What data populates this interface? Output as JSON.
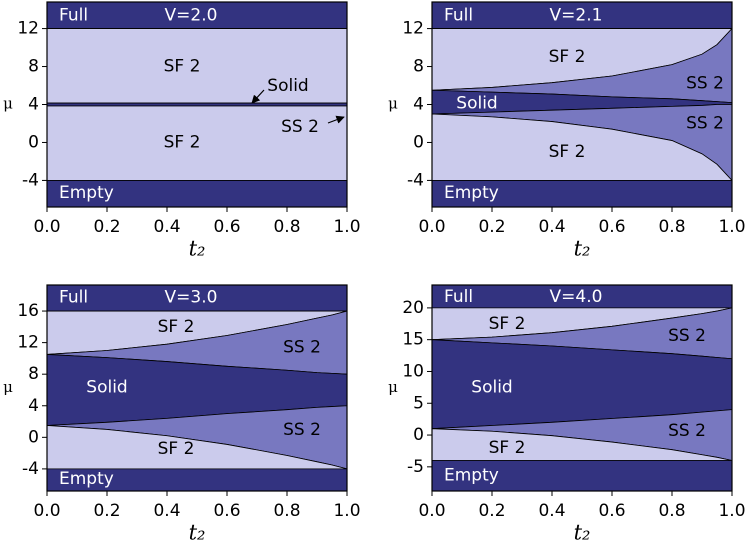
{
  "chart_data": [
    {
      "type": "area",
      "title": "V=2.0",
      "xlabel": "t₂",
      "ylabel": "μ",
      "xlim": [
        0,
        1
      ],
      "ylim": [
        -6.8,
        14.8
      ],
      "xticks": [
        {
          "value": 0,
          "label": "0.0"
        },
        {
          "value": 0.2,
          "label": "0.2"
        },
        {
          "value": 0.4,
          "label": "0.4"
        },
        {
          "value": 0.6,
          "label": "0.6"
        },
        {
          "value": 0.8,
          "label": "0.8"
        },
        {
          "value": 1,
          "label": "1.0"
        }
      ],
      "yticks": [
        -4,
        0,
        4,
        8,
        12
      ],
      "regions": [
        {
          "label": "Full",
          "color": "#333380",
          "x": [
            0,
            1
          ],
          "lower": [
            12,
            12
          ]
        },
        {
          "label": "SF 2",
          "color": "#cbcbec",
          "x": [
            0,
            1
          ],
          "lower": [
            4.15,
            4.15
          ],
          "upper": [
            12,
            12
          ]
        },
        {
          "color": "#333380",
          "x": [
            0,
            1
          ],
          "lower": [
            3.85,
            3.85
          ],
          "upper": [
            4.15,
            4.15
          ]
        },
        {
          "label": "SF 2",
          "color": "#cbcbec",
          "x": [
            0,
            1
          ],
          "lower": [
            -4,
            -4
          ],
          "upper": [
            3.85,
            3.85
          ]
        },
        {
          "label": "Empty",
          "color": "#333380",
          "x": [
            0,
            1
          ],
          "upper": [
            -4,
            -4
          ]
        }
      ],
      "annotations": [
        {
          "text": "Solid"
        },
        {
          "text": "SS 2"
        }
      ]
    },
    {
      "type": "area",
      "title": "V=2.1",
      "xlabel": "t₂",
      "ylabel": "μ",
      "xlim": [
        0,
        1
      ],
      "ylim": [
        -6.8,
        14.8
      ],
      "xticks": [
        {
          "value": 0,
          "label": "0.0"
        },
        {
          "value": 0.2,
          "label": "0.2"
        },
        {
          "value": 0.4,
          "label": "0.4"
        },
        {
          "value": 0.6,
          "label": "0.6"
        },
        {
          "value": 0.8,
          "label": "0.8"
        },
        {
          "value": 1,
          "label": "1.0"
        }
      ],
      "yticks": [
        -4,
        0,
        4,
        8,
        12
      ],
      "regions": [
        {
          "label": "Full",
          "color": "#333380",
          "x": [
            0,
            1
          ],
          "lower": [
            12,
            12
          ]
        },
        {
          "label": "SF 2",
          "color": "#cbcbec",
          "x": [
            0,
            0.2,
            0.4,
            0.6,
            0.8,
            0.9,
            0.95,
            1
          ],
          "lower": [
            5.5,
            5.8,
            6.3,
            7.0,
            8.2,
            9.3,
            10.3,
            12
          ],
          "upper": [
            12,
            12,
            12,
            12,
            12,
            12,
            12,
            12
          ]
        },
        {
          "label": "SS 2",
          "color": "#7878c0",
          "x": [
            0,
            0.2,
            0.4,
            0.6,
            0.8,
            0.9,
            0.95,
            1
          ],
          "lower": [
            5.5,
            5.3,
            5.1,
            4.8,
            4.6,
            4.4,
            4.3,
            4.2
          ],
          "upper": [
            5.5,
            5.8,
            6.3,
            7.0,
            8.2,
            9.3,
            10.3,
            12
          ]
        },
        {
          "label": "Solid",
          "color": "#333380",
          "x": [
            0,
            0.2,
            0.4,
            0.6,
            0.8,
            0.9,
            0.95,
            1
          ],
          "lower": [
            3.0,
            3.2,
            3.4,
            3.6,
            3.8,
            3.9,
            4.0,
            4.0
          ],
          "upper": [
            5.5,
            5.3,
            5.1,
            4.8,
            4.6,
            4.4,
            4.3,
            4.2
          ]
        },
        {
          "label": "SS 2",
          "color": "#7878c0",
          "x": [
            0,
            0.2,
            0.4,
            0.6,
            0.8,
            0.9,
            0.95,
            1
          ],
          "lower": [
            3.0,
            2.7,
            2.2,
            1.4,
            0.2,
            -1.2,
            -2.3,
            -4
          ],
          "upper": [
            3.0,
            3.2,
            3.4,
            3.6,
            3.8,
            3.9,
            4.0,
            4.0
          ]
        },
        {
          "label": "SF 2",
          "color": "#cbcbec",
          "x": [
            0,
            0.2,
            0.4,
            0.6,
            0.8,
            0.9,
            0.95,
            1
          ],
          "lower": [
            -4,
            -4,
            -4,
            -4,
            -4,
            -4,
            -4,
            -4
          ],
          "upper": [
            3.0,
            2.7,
            2.2,
            1.4,
            0.2,
            -1.2,
            -2.3,
            -4
          ]
        },
        {
          "label": "Empty",
          "color": "#333380",
          "x": [
            0,
            1
          ],
          "upper": [
            -4,
            -4
          ]
        }
      ]
    },
    {
      "type": "area",
      "title": "V=3.0",
      "xlabel": "t₂",
      "ylabel": "μ",
      "xlim": [
        0,
        1
      ],
      "ylim": [
        -6.8,
        19.3
      ],
      "xticks": [
        {
          "value": 0,
          "label": "0.0"
        },
        {
          "value": 0.2,
          "label": "0.2"
        },
        {
          "value": 0.4,
          "label": "0.4"
        },
        {
          "value": 0.6,
          "label": "0.6"
        },
        {
          "value": 0.8,
          "label": "0.8"
        },
        {
          "value": 1,
          "label": "1.0"
        }
      ],
      "yticks": [
        -4,
        0,
        4,
        8,
        12,
        16
      ],
      "regions": [
        {
          "label": "Full",
          "color": "#333380",
          "x": [
            0,
            1
          ],
          "lower": [
            16,
            16
          ]
        },
        {
          "label": "SF 2",
          "color": "#cbcbec",
          "x": [
            0,
            0.2,
            0.4,
            0.6,
            0.8,
            0.9,
            0.95,
            1
          ],
          "lower": [
            10.5,
            11,
            11.8,
            12.9,
            14.3,
            15.1,
            15.5,
            16
          ],
          "upper": [
            16,
            16,
            16,
            16,
            16,
            16,
            16,
            16
          ]
        },
        {
          "label": "SS 2",
          "color": "#7878c0",
          "x": [
            0,
            0.2,
            0.4,
            0.6,
            0.8,
            0.9,
            0.95,
            1
          ],
          "lower": [
            10.5,
            10.1,
            9.6,
            9.0,
            8.5,
            8.2,
            8.1,
            8.0
          ],
          "upper": [
            10.5,
            11,
            11.8,
            12.9,
            14.3,
            15.1,
            15.5,
            16
          ]
        },
        {
          "label": "Solid",
          "color": "#333380",
          "x": [
            0,
            0.2,
            0.4,
            0.6,
            0.8,
            0.9,
            0.95,
            1
          ],
          "lower": [
            1.5,
            1.9,
            2.4,
            3.0,
            3.5,
            3.8,
            3.9,
            4.0
          ],
          "upper": [
            10.5,
            10.1,
            9.6,
            9.0,
            8.5,
            8.2,
            8.1,
            8.0
          ]
        },
        {
          "label": "SS 2",
          "color": "#7878c0",
          "x": [
            0,
            0.2,
            0.4,
            0.6,
            0.8,
            0.9,
            0.95,
            1
          ],
          "lower": [
            1.5,
            1.0,
            0.2,
            -0.9,
            -2.3,
            -3.1,
            -3.5,
            -4
          ],
          "upper": [
            1.5,
            1.9,
            2.4,
            3.0,
            3.5,
            3.8,
            3.9,
            4.0
          ]
        },
        {
          "label": "SF 2",
          "color": "#cbcbec",
          "x": [
            0,
            0.2,
            0.4,
            0.6,
            0.8,
            0.9,
            0.95,
            1
          ],
          "lower": [
            -4,
            -4,
            -4,
            -4,
            -4,
            -4,
            -4,
            -4
          ],
          "upper": [
            1.5,
            1.0,
            0.2,
            -0.9,
            -2.3,
            -3.1,
            -3.5,
            -4
          ]
        },
        {
          "label": "Empty",
          "color": "#333380",
          "x": [
            0,
            1
          ],
          "upper": [
            -4,
            -4
          ]
        }
      ]
    },
    {
      "type": "area",
      "title": "V=4.0",
      "xlabel": "t₂",
      "ylabel": "μ",
      "xlim": [
        0,
        1
      ],
      "ylim": [
        -8.8,
        23.6
      ],
      "xticks": [
        {
          "value": 0,
          "label": "0.0"
        },
        {
          "value": 0.2,
          "label": "0.2"
        },
        {
          "value": 0.4,
          "label": "0.4"
        },
        {
          "value": 0.6,
          "label": "0.6"
        },
        {
          "value": 0.8,
          "label": "0.8"
        },
        {
          "value": 1,
          "label": "1.0"
        }
      ],
      "yticks": [
        -5,
        0,
        5,
        10,
        15,
        20
      ],
      "regions": [
        {
          "label": "Full",
          "color": "#333380",
          "x": [
            0,
            1
          ],
          "lower": [
            20,
            20
          ]
        },
        {
          "label": "SF 2",
          "color": "#cbcbec",
          "x": [
            0,
            0.2,
            0.4,
            0.6,
            0.8,
            0.9,
            0.95,
            1
          ],
          "lower": [
            15,
            15.4,
            16.1,
            17.1,
            18.4,
            19.1,
            19.5,
            20
          ],
          "upper": [
            20,
            20,
            20,
            20,
            20,
            20,
            20,
            20
          ]
        },
        {
          "label": "SS 2",
          "color": "#7878c0",
          "x": [
            0,
            0.2,
            0.4,
            0.6,
            0.8,
            0.9,
            0.95,
            1
          ],
          "lower": [
            15,
            14.5,
            14,
            13.4,
            12.8,
            12.4,
            12.2,
            12
          ],
          "upper": [
            15,
            15.4,
            16.1,
            17.1,
            18.4,
            19.1,
            19.5,
            20
          ]
        },
        {
          "label": "Solid",
          "color": "#333380",
          "x": [
            0,
            0.2,
            0.4,
            0.6,
            0.8,
            0.9,
            0.95,
            1
          ],
          "lower": [
            1,
            1.5,
            2,
            2.6,
            3.2,
            3.6,
            3.8,
            4
          ],
          "upper": [
            15,
            14.5,
            14,
            13.4,
            12.8,
            12.4,
            12.2,
            12
          ]
        },
        {
          "label": "SS 2",
          "color": "#7878c0",
          "x": [
            0,
            0.2,
            0.4,
            0.6,
            0.8,
            0.9,
            0.95,
            1
          ],
          "lower": [
            1,
            0.6,
            -0.1,
            -1.1,
            -2.3,
            -3.1,
            -3.5,
            -4
          ],
          "upper": [
            1,
            1.5,
            2,
            2.6,
            3.2,
            3.6,
            3.8,
            4
          ]
        },
        {
          "label": "SF 2",
          "color": "#cbcbec",
          "x": [
            0,
            0.2,
            0.4,
            0.6,
            0.8,
            0.9,
            0.95,
            1
          ],
          "lower": [
            -4,
            -4,
            -4,
            -4,
            -4,
            -4,
            -4,
            -4
          ],
          "upper": [
            1,
            0.6,
            -0.1,
            -1.1,
            -2.3,
            -3.1,
            -3.5,
            -4
          ]
        },
        {
          "label": "Empty",
          "color": "#333380",
          "x": [
            0,
            1
          ],
          "upper": [
            -4,
            -4
          ]
        }
      ]
    }
  ]
}
